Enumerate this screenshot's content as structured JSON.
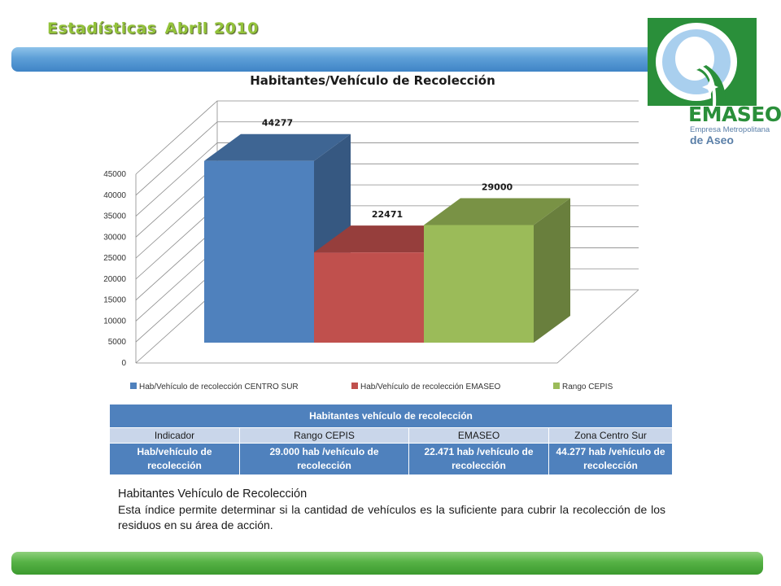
{
  "slide": {
    "title_part1": "Estadísticas",
    "title_part2": "Abril 2010"
  },
  "logo": {
    "brand": "EMASEO",
    "tagline1": "Empresa Metropolitana",
    "tagline2": "de Aseo",
    "colors": {
      "green": "#2a8f3a",
      "blue": "#a9cfee"
    }
  },
  "chart_data": {
    "type": "bar",
    "title": "Habitantes/Vehículo de Recolección",
    "series": [
      {
        "name": "Hab/Vehículo de recolección CENTRO SUR",
        "value": 44277,
        "color": "#4f81bd"
      },
      {
        "name": "Hab/Vehículo de recolección EMASEO",
        "value": 22471,
        "color": "#c0504d"
      },
      {
        "name": "Rango  CEPIS",
        "value": 29000,
        "color": "#9bbb59"
      }
    ],
    "y_ticks": [
      0,
      5000,
      10000,
      15000,
      20000,
      25000,
      30000,
      35000,
      40000,
      45000
    ],
    "ylim": [
      0,
      45000
    ],
    "grid": true,
    "legend_position": "bottom",
    "three_d": true
  },
  "table": {
    "caption": "Habitantes vehículo de recolección",
    "headers": [
      "Indicador",
      "Rango CEPIS",
      "EMASEO",
      "Zona Centro Sur"
    ],
    "rows": [
      [
        "Hab/vehículo de recolección",
        "29.000 hab /vehículo de recolección",
        "22.471 hab /vehículo de recolección",
        "44.277 hab /vehículo de recolección"
      ]
    ]
  },
  "description": {
    "title": "Habitantes Vehículo de Recolección",
    "body": "Esta índice permite determinar si la cantidad de vehículos es la suficiente para cubrir la recolección de los residuos en su área de acción."
  }
}
